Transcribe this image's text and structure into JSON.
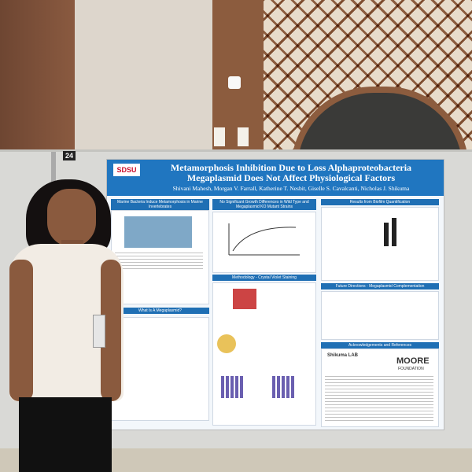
{
  "board_number": "24",
  "poster": {
    "logo": "SDSU",
    "title": "Metamorphosis Inhibition Due to Loss Alphaproteobacteria Megaplasmid Does Not Affect Physiological Factors",
    "authors": "Shivani Mahesh, Morgan V. Farrall, Katherine T. Nesbit, Giselle S. Cavalcanti, Nicholas J. Shikuma",
    "sections": [
      "Marine Bacteria Induce Metamorphosis in Marine Invertebrates",
      "What Is A Megaplasmid?",
      "No Significant Growth Differences in Wild Type and Megaplasmid KO Mutant Strains",
      "Methodology - Crystal Violet Staining",
      "Results from Biofilm Quantification",
      "Future Directions - Megaplasmid Complementation",
      "Acknowledgements and References"
    ],
    "sponsor": "MOORE",
    "sponsor_sub": "FOUNDATION",
    "lab": "Shikuma LAB"
  }
}
